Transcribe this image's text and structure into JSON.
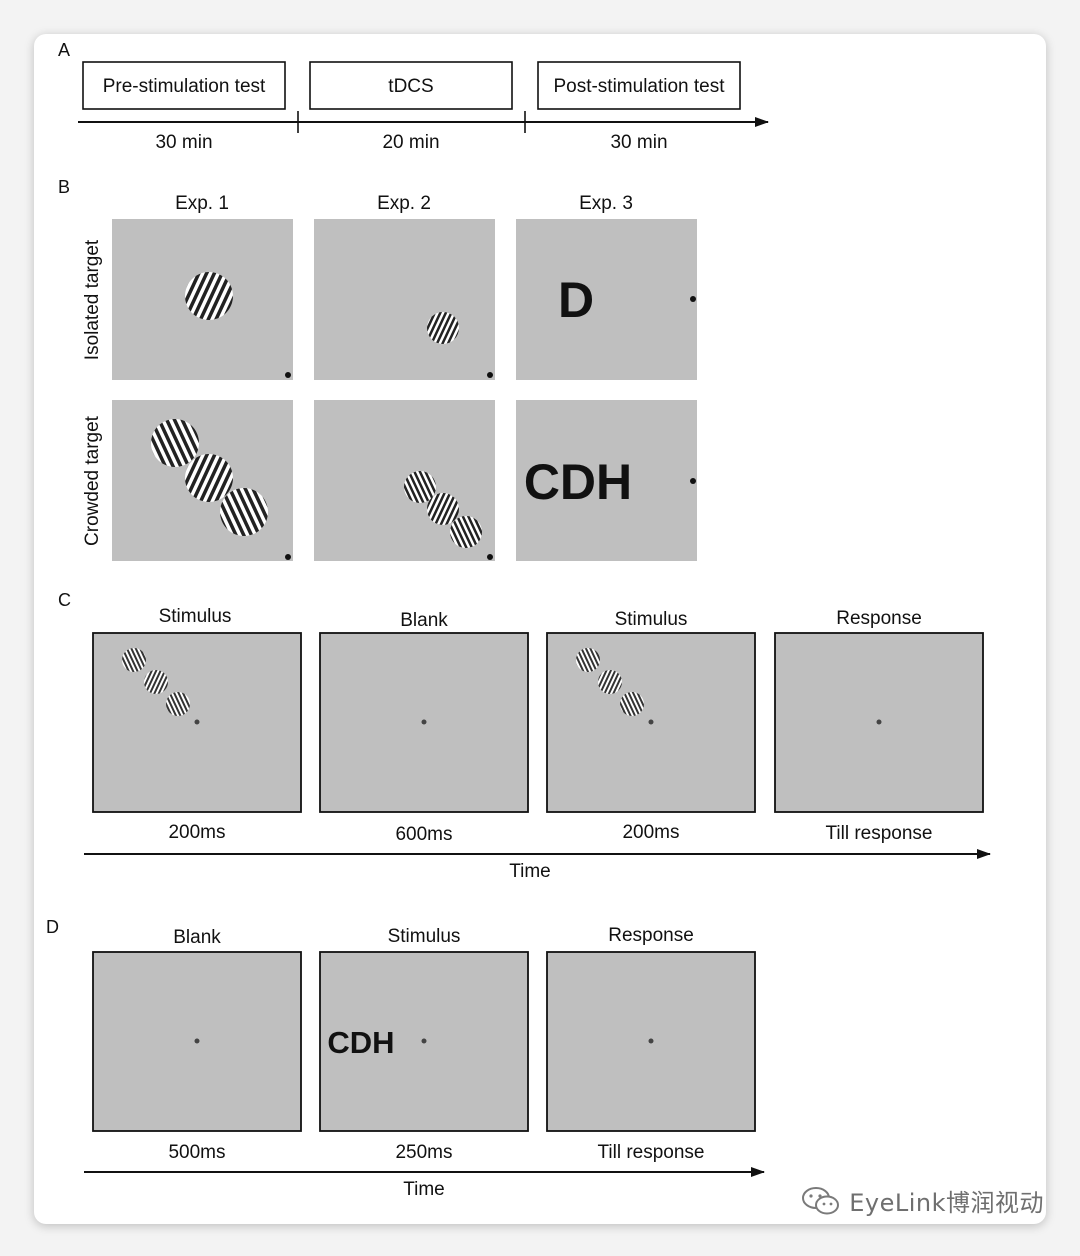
{
  "panels": {
    "a": {
      "letter": "A",
      "phases": [
        "Pre-stimulation test",
        "tDCS",
        "Post-stimulation test"
      ],
      "durations": [
        "30 min",
        "20 min",
        "30 min"
      ]
    },
    "b": {
      "letter": "B",
      "columns": [
        "Exp. 1",
        "Exp. 2",
        "Exp. 3"
      ],
      "rows": [
        "Isolated target",
        "Crowded target"
      ],
      "isolated_letter": "D",
      "crowded_letters": "CDH"
    },
    "c": {
      "letter": "C",
      "frames": [
        "Stimulus",
        "Blank",
        "Stimulus",
        "Response"
      ],
      "durations": [
        "200ms",
        "600ms",
        "200ms",
        "Till response"
      ],
      "axis_label": "Time"
    },
    "d": {
      "letter": "D",
      "frames": [
        "Blank",
        "Stimulus",
        "Response"
      ],
      "durations": [
        "500ms",
        "250ms",
        "Till response"
      ],
      "axis_label": "Time",
      "stimulus_letters": "CDH"
    }
  },
  "watermark": {
    "text": "EyeLink博润视动",
    "icon": "wechat-icon"
  },
  "colors": {
    "stimulus_gray": "#bfbfbf",
    "letter_gray": "#8d8d8d",
    "ink": "#111111"
  }
}
